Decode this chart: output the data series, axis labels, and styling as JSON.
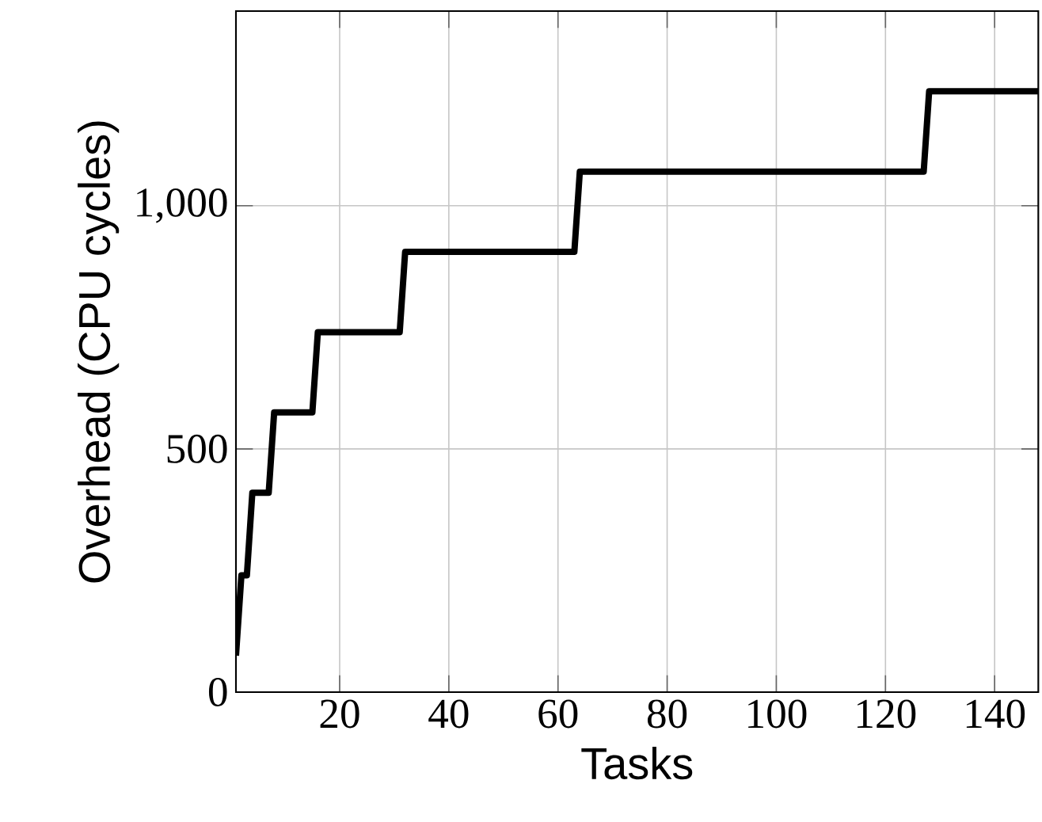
{
  "chart_data": {
    "type": "line",
    "xlabel": "Tasks",
    "ylabel": "Overhead (CPU cycles)",
    "xlim": [
      1,
      148
    ],
    "ylim": [
      0,
      1400
    ],
    "xticks": [
      20,
      40,
      60,
      80,
      100,
      120,
      140
    ],
    "yticks": [
      0,
      500,
      {
        "value": 1000,
        "label": "1,000"
      }
    ],
    "grid": true,
    "marker": "none",
    "line_style": "solid",
    "series": [
      {
        "color": "#000000",
        "x": [
          1,
          2,
          3,
          4,
          7,
          8,
          15,
          16,
          31,
          32,
          63,
          64,
          127,
          128,
          148
        ],
        "values": [
          75,
          240,
          240,
          410,
          410,
          575,
          575,
          740,
          740,
          905,
          905,
          1070,
          1070,
          1235,
          1235
        ]
      }
    ]
  }
}
